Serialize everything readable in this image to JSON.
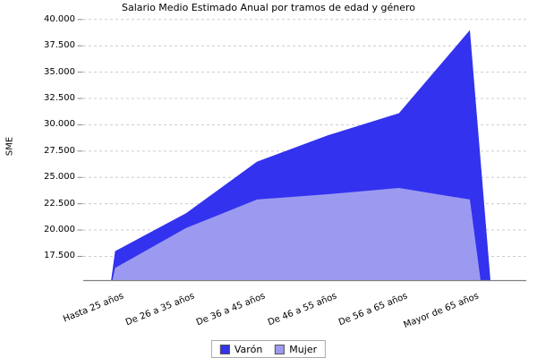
{
  "chart_data": {
    "type": "area",
    "title": "Salario Medio Estimado Anual por tramos de edad y género",
    "ylabel": "SME",
    "xlabel": "",
    "categories": [
      "Hasta 25 años",
      "De 26 a 35 años",
      "De 36 a 45 años",
      "De 46 a 55 años",
      "De 56 a 65 años",
      "Mayor de 65 años"
    ],
    "series": [
      {
        "name": "Varón",
        "color": "#3332EF",
        "values": [
          18000,
          21600,
          26500,
          29000,
          31100,
          39000
        ]
      },
      {
        "name": "Mujer",
        "color": "#9C9AF0",
        "values": [
          16400,
          20200,
          22900,
          23400,
          24000,
          22900
        ]
      }
    ],
    "ylim": [
      15000,
      40000
    ],
    "yticks": [
      17500,
      20000,
      22500,
      25000,
      27500,
      30000,
      32500,
      35000,
      37500,
      40000
    ],
    "ytick_labels": [
      "17.500",
      "20.000",
      "22.500",
      "25.000",
      "27.500",
      "30.000",
      "32.500",
      "35.000",
      "37.500",
      "40.000"
    ],
    "grid": "horizontal-dashed",
    "legend_position": "bottom-center"
  },
  "colors": {
    "background": "#FFFFFF",
    "varon": "#3332EF",
    "mujer": "#9C9AF0",
    "gridline": "#CCCCCC",
    "axis": "#808080",
    "tick": "#888888",
    "text": "#000000",
    "legend_border": "#AAAAAA"
  }
}
